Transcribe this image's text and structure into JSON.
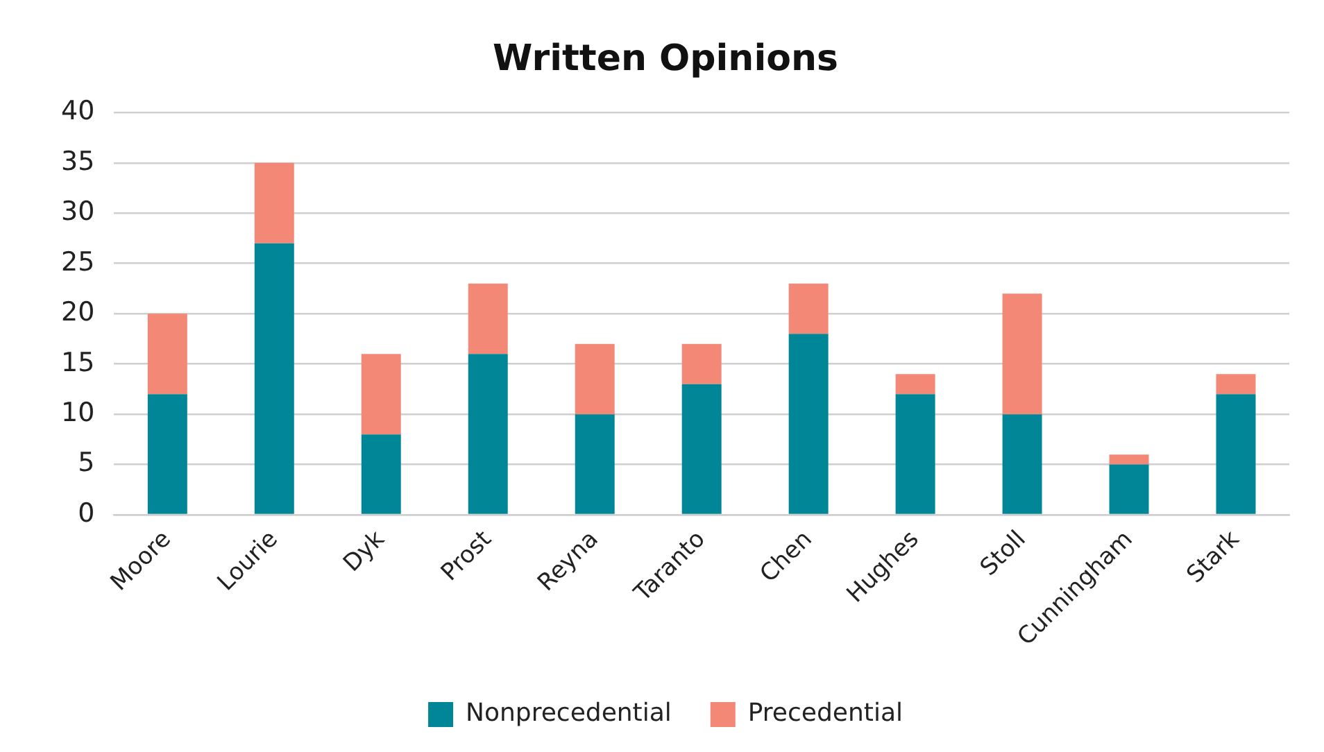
{
  "chart_data": {
    "type": "bar",
    "title": "Written Opinions",
    "stacked": true,
    "categories": [
      "Moore",
      "Lourie",
      "Dyk",
      "Prost",
      "Reyna",
      "Taranto",
      "Chen",
      "Hughes",
      "Stoll",
      "Cunningham",
      "Stark"
    ],
    "series": [
      {
        "name": "Nonprecedential",
        "color": "#008697",
        "values": [
          12,
          27,
          8,
          16,
          10,
          13,
          18,
          12,
          10,
          5,
          12
        ]
      },
      {
        "name": "Precedential",
        "color": "#f48876",
        "values": [
          8,
          8,
          8,
          7,
          7,
          4,
          5,
          2,
          12,
          1,
          2
        ]
      }
    ],
    "ylim": [
      0,
      40
    ],
    "yticks": [
      0,
      5,
      10,
      15,
      20,
      25,
      30,
      35,
      40
    ],
    "grid": "y",
    "legend": "bottom"
  }
}
